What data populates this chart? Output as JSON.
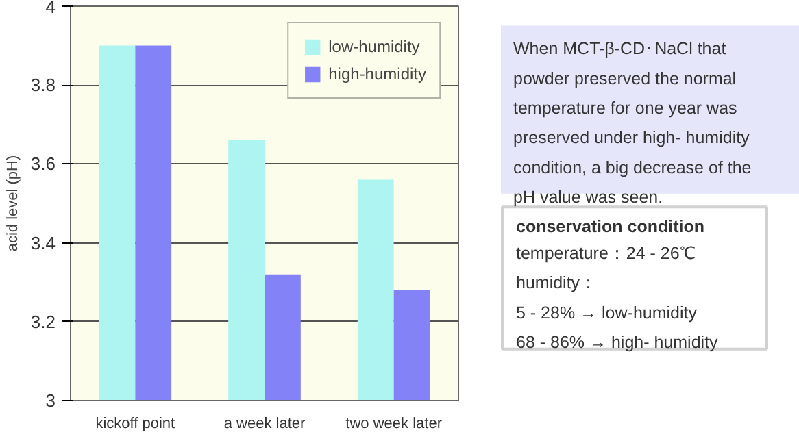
{
  "chart_data": {
    "type": "bar",
    "categories": [
      "kickoff point",
      "a week later",
      "two week later"
    ],
    "series": [
      {
        "name": "low-humidity",
        "color": "#aef5f2",
        "values": [
          3.9,
          3.66,
          3.56
        ]
      },
      {
        "name": "high-humidity",
        "color": "#8383f7",
        "values": [
          3.9,
          3.32,
          3.28
        ]
      }
    ],
    "ylabel": "acid level (pH)",
    "ylim": [
      3,
      4
    ],
    "yticks": [
      3,
      3.2,
      3.4,
      3.6,
      3.8,
      4
    ],
    "grid": "y",
    "legend": "top right",
    "annotations": [
      "When MCT-β-CD･NaCl that\npowder preserved the normal\ntemperature for one year was\npreserved under high- humidity\ncondition, a big decrease of the\npH value was seen.",
      "conservation condition",
      "temperature：24 - 26℃\nhumidity：\n  5 - 28% →  low-humidity\n68 - 86% →  high- humidity"
    ]
  }
}
